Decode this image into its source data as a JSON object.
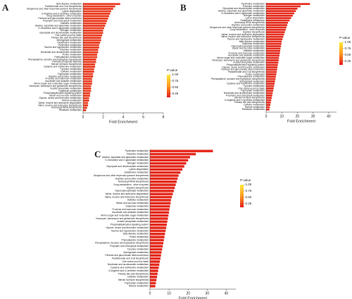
{
  "chart_data": [
    {
      "type": "bar",
      "orientation": "horizontal",
      "panel_label": "A",
      "xlabel": "Fold Enrichment",
      "color": "#ea3a1e",
      "categories": [
        "beta-Alanine metabolism",
        "Pantothenate and CoA biosynthesis",
        "Ubiquinone and other terpenoid-quinone biosynthesis",
        "Lysine degradation",
        "D-Arginine and D-ornithine metabolism",
        "Drug metabolism - other enzymes",
        "Pentose and glucuronate interconversions",
        "Porphyrin and chlorophyll metabolism",
        "Histidine metabolism",
        "Alanine, aspartate and glutamate metabolism",
        "D-Glutamine and D-glutamate metabolism",
        "Nitrogen metabolism",
        "Glyoxylate and dicarboxylate metabolism",
        "One carbon pool by folate",
        "Primary bile acid biosynthesis",
        "Sphingolipid metabolism",
        "Glutathione metabolism",
        "Pyrimidine metabolism",
        "Taurine and hypotaurine metabolism",
        "Thiamine metabolism",
        "Nicotinate and nicotinamide metabolism",
        "Purine metabolism",
        "Phenylalanine metabolism",
        "Phenylalanine, tyrosine and tryptophan biosynthesis",
        "Pentose phosphate pathway",
        "Steroid hormone biosynthesis",
        "Cysteine and methionine metabolism",
        "Tyrosine metabolism",
        "Caffeine metabolism",
        "Tryptophan metabolism",
        "Arginine and proline metabolism",
        "Fructose and mannose metabolism",
        "Ascorbate and aldarate metabolism",
        "Amino sugar and nucleotide sugar metabolism",
        "Neomycin, kanamycin and gentamicin biosynthesis",
        "Inositol phosphate metabolism",
        "Galactose metabolism",
        "Phosphatidylinositol signaling system",
        "Starch and sucrose metabolism",
        "Glycine, serine and threonine metabolism",
        "Retinol metabolism",
        "Valine, leucine and isoleucine degradation",
        "Valine, leucine and isoleucine biosynthesis",
        "Aminoacyl-tRNA biosynthesis",
        "Riboflavin metabolism"
      ],
      "values": [
        3.7,
        3.2,
        3.0,
        2.8,
        2.7,
        2.6,
        2.5,
        2.4,
        2.3,
        2.2,
        2.1,
        2.0,
        2.0,
        1.9,
        1.8,
        1.8,
        1.7,
        1.6,
        1.6,
        1.5,
        1.5,
        1.4,
        1.4,
        1.3,
        1.3,
        1.2,
        1.2,
        1.1,
        1.1,
        1.0,
        1.0,
        0.9,
        0.9,
        0.9,
        0.8,
        0.8,
        0.8,
        0.7,
        0.7,
        0.6,
        0.6,
        0.5,
        0.5,
        0.4,
        0.3
      ],
      "xlim": [
        0,
        8
      ],
      "xticks": [
        0,
        2,
        4,
        6,
        8
      ],
      "legend_title": "P-value",
      "legend_lim": [
        0.1,
        1.0
      ],
      "legend_colors": [
        "#e31a1c",
        "#ff9a1f",
        "#ffe83a"
      ],
      "legend_ticks": [
        {
          "value": 1.0,
          "label": "1.00"
        },
        {
          "value": 0.75,
          "label": "0.75"
        },
        {
          "value": 0.5,
          "label": "0.50"
        },
        {
          "value": 0.25,
          "label": "0.25"
        }
      ]
    },
    {
      "type": "bar",
      "orientation": "horizontal",
      "panel_label": "B",
      "xlabel": "Fold Enrichment",
      "color": "#e52a1c",
      "categories": [
        "Pyrimidine metabolism",
        "Thiamine metabolism",
        "Glyoxylate and dicarboxylate metabolism",
        "Alanine, aspartate and glutamate metabolism",
        "D-Glutamine and D-glutamate metabolism",
        "Nitrogen metabolism",
        "Lysine degradation",
        "Glutathione metabolism",
        "Aminoacyl-tRNA biosynthesis",
        "Arginine and proline metabolism",
        "Ubiquinone and other terpenoid-quinone biosynthesis",
        "Drug metabolism - other enzymes",
        "Arginine biosynthesis",
        "Valine, leucine and isoleucine degradation",
        "Valine, leucine and isoleucine biosynthesis",
        "Taurine and hypotaurine metabolism",
        "beta-Alanine metabolism",
        "Galactose metabolism",
        "Glycerophospholipid metabolism",
        "Starch and sucrose metabolism",
        "Histidine metabolism",
        "Fructose and mannose metabolism",
        "Ascorbate and aldarate metabolism",
        "Amino sugar and nucleotide sugar metabolism",
        "Neomycin, kanamycin and gentamicin biosynthesis",
        "Inositol phosphate metabolism",
        "Phosphatidylinositol signaling system",
        "Glycine, serine and threonine metabolism",
        "Pentose and glucuronate interconversions",
        "Pantothenate and CoA biosynthesis",
        "Purine metabolism",
        "Phenylalanine metabolism",
        "Phenylalanine, tyrosine and tryptophan biosynthesis",
        "Sphingolipid metabolism",
        "Cysteine and methionine metabolism",
        "Tyrosine metabolism",
        "One carbon pool by folate",
        "Tryptophan metabolism",
        "Nicotinate and nicotinamide metabolism",
        "Porphyrin and chlorophyll metabolism",
        "Steroid hormone biosynthesis",
        "D-Arginine and D-ornithine metabolism",
        "Primary bile acid biosynthesis",
        "Caffeine metabolism",
        "Retinol metabolism",
        "Riboflavin metabolism"
      ],
      "values": [
        28,
        22,
        20,
        19,
        18,
        17,
        16,
        15,
        14,
        13.5,
        13,
        12.5,
        12,
        11.5,
        11,
        10.5,
        10,
        9.8,
        9.5,
        9.2,
        9,
        8.8,
        8.5,
        8.2,
        8,
        7.8,
        7.5,
        7.2,
        7,
        6.8,
        6.5,
        6.2,
        6,
        5.7,
        5.4,
        5.1,
        4.8,
        4.5,
        4.2,
        3.9,
        3.6,
        3.3,
        3,
        2.7,
        2.4,
        2.1
      ],
      "xlim": [
        0,
        45
      ],
      "xticks": [
        0,
        10,
        20,
        30,
        40
      ],
      "legend_title": "P-value",
      "legend_lim": [
        0.1,
        1.0
      ],
      "legend_colors": [
        "#e31a1c",
        "#ff9a1f",
        "#ffe83a"
      ],
      "legend_ticks": [
        {
          "value": 1.0,
          "label": "1.00"
        },
        {
          "value": 0.75,
          "label": "0.75"
        },
        {
          "value": 0.5,
          "label": "0.50"
        },
        {
          "value": 0.25,
          "label": "0.25"
        }
      ]
    },
    {
      "type": "bar",
      "orientation": "horizontal",
      "panel_label": "C",
      "xlabel": "Fold Enrichment",
      "color": "#e52a1c",
      "categories": [
        "Pyrimidine metabolism",
        "Thiamine metabolism",
        "Alanine, aspartate and glutamate metabolism",
        "D-Glutamine and D-glutamate metabolism",
        "Nitrogen metabolism",
        "Glyoxylate and dicarboxylate metabolism",
        "Lysine degradation",
        "Glutathione metabolism",
        "Ubiquinone and other terpenoid-quinone biosynthesis",
        "Arginine and proline metabolism",
        "Aminoacyl-tRNA biosynthesis",
        "Drug metabolism - other enzymes",
        "Arginine biosynthesis",
        "Glycerophospholipid metabolism",
        "Valine, leucine and isoleucine degradation",
        "Valine, leucine and isoleucine biosynthesis",
        "Histidine metabolism",
        "Starch and sucrose metabolism",
        "Galactose metabolism",
        "Fructose and mannose metabolism",
        "Ascorbate and aldarate metabolism",
        "Amino sugar and nucleotide sugar metabolism",
        "Neomycin, kanamycin and gentamicin biosynthesis",
        "Inositol phosphate metabolism",
        "Phosphatidylinositol signaling system",
        "Glycine, serine and threonine metabolism",
        "Taurine and hypotaurine metabolism",
        "beta-Alanine metabolism",
        "Purine metabolism",
        "Phenylalanine metabolism",
        "Phenylalanine, tyrosine and tryptophan biosynthesis",
        "Porphyrin and chlorophyll metabolism",
        "Tyrosine metabolism",
        "Sphingolipid metabolism",
        "Pentose and glucuronate interconversions",
        "Pantothenate and CoA biosynthesis",
        "One carbon pool by folate",
        "Nicotinate and nicotinamide metabolism",
        "Cysteine and methionine metabolism",
        "D-Arginine and D-ornithine metabolism",
        "Primary bile acid biosynthesis",
        "Caffeine metabolism",
        "Steroid hormone biosynthesis",
        "Tryptophan metabolism",
        "Retinol metabolism"
      ],
      "values": [
        33,
        24,
        21,
        20,
        19,
        18,
        17,
        16,
        15,
        14.5,
        14,
        13.5,
        13,
        12.5,
        12,
        11.5,
        11,
        10.8,
        10.5,
        10.2,
        10,
        9.7,
        9.4,
        9.1,
        8.8,
        8.5,
        8.2,
        7.9,
        7.6,
        7.3,
        7,
        6.7,
        6.4,
        6.1,
        5.8,
        5.5,
        5.2,
        4.9,
        4.6,
        4.3,
        4,
        3.7,
        3.4,
        3.1,
        2.8
      ],
      "xlim": [
        0,
        45
      ],
      "xticks": [
        0,
        10,
        20,
        30,
        40
      ],
      "legend_title": "P-value",
      "legend_lim": [
        0.1,
        1.0
      ],
      "legend_colors": [
        "#e31a1c",
        "#ff9a1f",
        "#ffe83a"
      ],
      "legend_ticks": [
        {
          "value": 1.0,
          "label": "1.00"
        },
        {
          "value": 0.75,
          "label": "0.75"
        },
        {
          "value": 0.5,
          "label": "0.50"
        },
        {
          "value": 0.25,
          "label": "0.25"
        }
      ]
    }
  ]
}
